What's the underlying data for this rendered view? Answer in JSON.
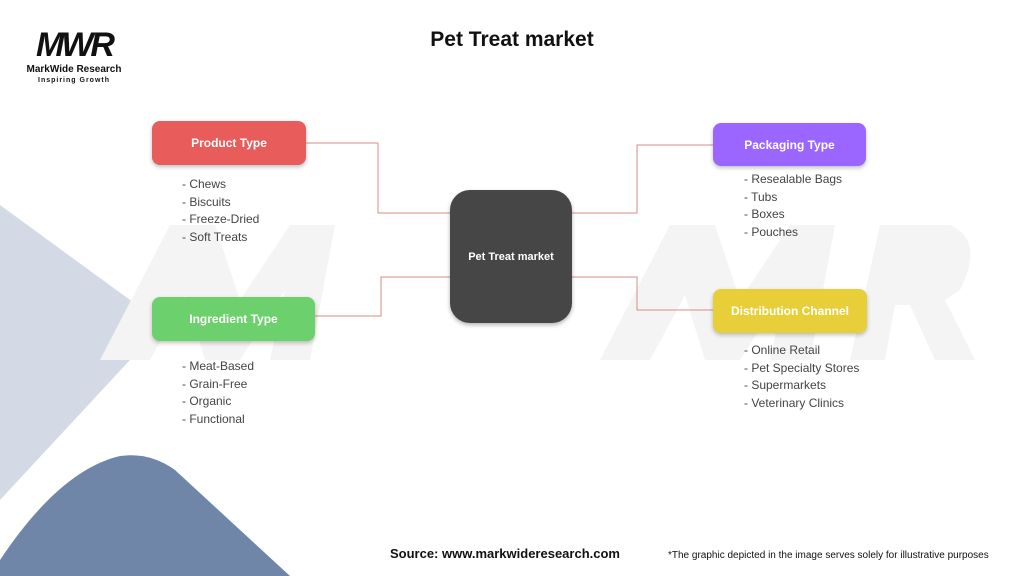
{
  "title": "Pet Treat market",
  "logo": {
    "mark": "MWR",
    "name": "MarkWide Research",
    "tagline": "Inspiring Growth"
  },
  "center": {
    "label": "Pet Treat market",
    "color": "#464646"
  },
  "connector_color": "#d98a8a",
  "branches": [
    {
      "label": "Product Type",
      "color": "#e85c5c",
      "items": [
        "- Chews",
        "- Biscuits",
        "- Freeze-Dried",
        "- Soft Treats"
      ]
    },
    {
      "label": "Ingredient Type",
      "color": "#6cd06c",
      "items": [
        "- Meat-Based",
        "- Grain-Free",
        "- Organic",
        "- Functional"
      ]
    },
    {
      "label": "Packaging Type",
      "color": "#9b66ff",
      "items": [
        "- Resealable Bags",
        "- Tubs",
        "- Boxes",
        "- Pouches"
      ]
    },
    {
      "label": "Distribution Channel",
      "color": "#e8cf3a",
      "items": [
        "- Online Retail",
        "- Pet Specialty Stores",
        "- Supermarkets",
        "- Veterinary Clinics"
      ]
    }
  ],
  "footer": {
    "source": "Source: www.markwideresearch.com",
    "note": "*The graphic depicted in the image serves solely for illustrative purposes"
  }
}
